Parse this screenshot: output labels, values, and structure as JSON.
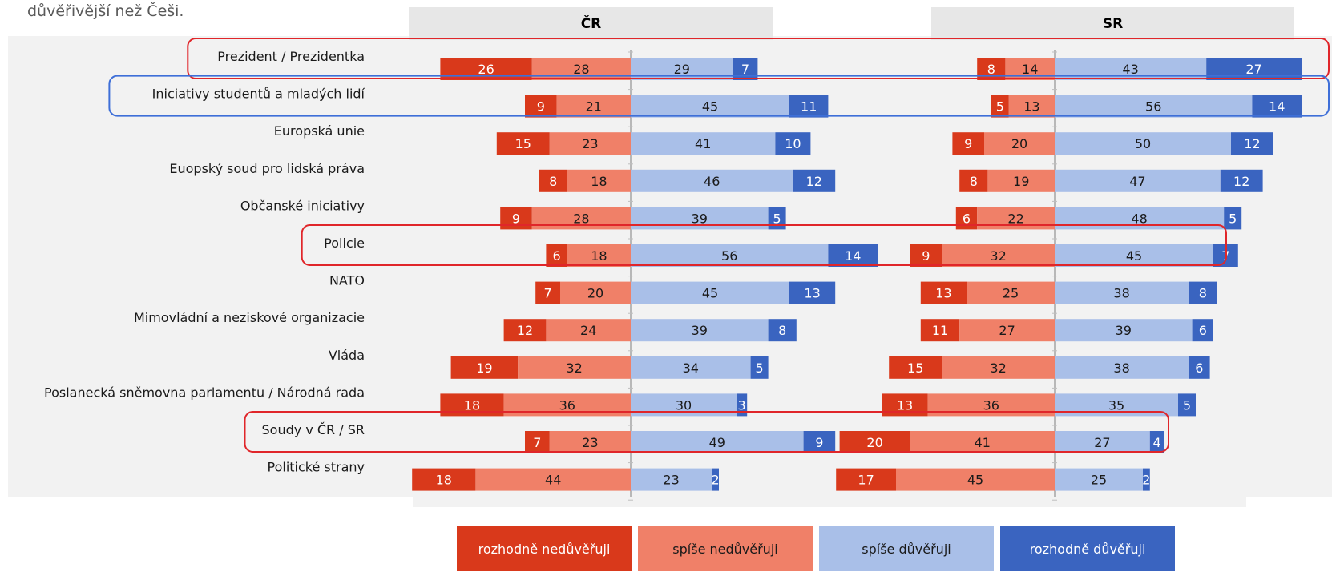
{
  "intro_text": "důvěřivější než Češi.",
  "colors": {
    "def_distrust": "#d9391b",
    "rather_distrust": "#f08068",
    "rather_trust": "#a9bfe8",
    "def_trust": "#3a64c0",
    "highlight_red": "#e0262a",
    "highlight_blue": "#3e6fd8"
  },
  "legend": [
    "rozhodně nedůvěřuji",
    "spíše nedůvěřuji",
    "spíše důvěřuji",
    "rozhodně důvěřuji"
  ],
  "chart_data": {
    "type": "bar",
    "subtype": "diverging-stacked",
    "panels": [
      "ČR",
      "SR"
    ],
    "categories": [
      "Prezident / Prezidentka",
      "Iniciativy studentů a mladých lidí",
      "Europská unie",
      "Euopský soud pro lidská práva",
      "Občanské iniciativy",
      "Policie",
      "NATO",
      "Mimovládní a neziskové organizacie",
      "Vláda",
      "Poslanecká sněmovna parlamentu  / Národná rada",
      "Soudy v ČR / SR",
      "Politické strany"
    ],
    "series": [
      {
        "name": "rozhodně nedůvěřuji",
        "CR": [
          26,
          9,
          15,
          8,
          9,
          6,
          7,
          12,
          19,
          18,
          7,
          18
        ],
        "SR": [
          8,
          5,
          9,
          8,
          6,
          9,
          13,
          11,
          15,
          13,
          20,
          17
        ]
      },
      {
        "name": "spíše nedůvěřuji",
        "CR": [
          28,
          21,
          23,
          18,
          28,
          18,
          20,
          24,
          32,
          36,
          23,
          44
        ],
        "SR": [
          14,
          13,
          20,
          19,
          22,
          32,
          25,
          27,
          32,
          36,
          41,
          45
        ]
      },
      {
        "name": "spíše důvěřuji",
        "CR": [
          29,
          45,
          41,
          46,
          39,
          56,
          45,
          39,
          34,
          30,
          49,
          23
        ],
        "SR": [
          43,
          56,
          50,
          47,
          48,
          45,
          38,
          39,
          38,
          35,
          27,
          25
        ]
      },
      {
        "name": "rozhodně důvěřuji",
        "CR": [
          7,
          11,
          10,
          12,
          5,
          14,
          13,
          8,
          5,
          3,
          9,
          2
        ],
        "SR": [
          27,
          14,
          12,
          12,
          5,
          7,
          8,
          6,
          6,
          5,
          4,
          2
        ]
      }
    ],
    "highlights": [
      {
        "category": "Prezident / Prezidentka",
        "color": "red"
      },
      {
        "category": "Iniciativy studentů a mladých lidí",
        "color": "blue"
      },
      {
        "category": "Policie",
        "color": "red"
      },
      {
        "category": "Soudy v ČR / SR",
        "color": "red"
      }
    ]
  }
}
